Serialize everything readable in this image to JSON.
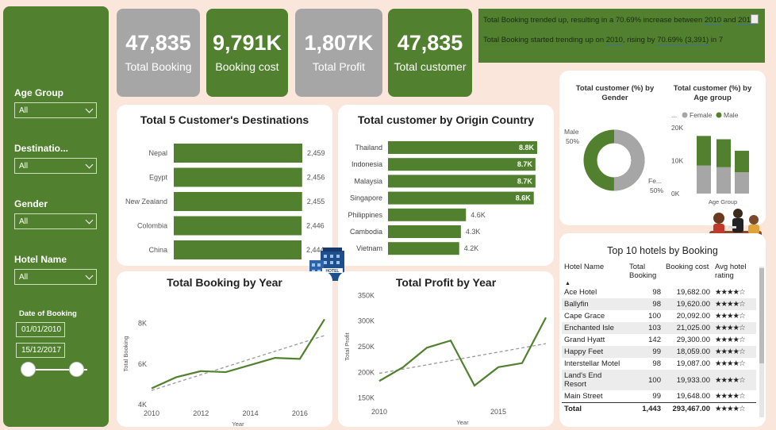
{
  "sidebar": {
    "slicers": [
      {
        "title": "Age Group",
        "value": "All"
      },
      {
        "title": "Destinatio...",
        "value": "All"
      },
      {
        "title": "Gender",
        "value": "All"
      },
      {
        "title": "Hotel Name",
        "value": "All"
      }
    ],
    "date_title": "Date of Booking",
    "date_start": "01/01/2010",
    "date_end": "15/12/2017"
  },
  "kpis": [
    {
      "value": "47,835",
      "label": "Total Booking",
      "style": "gray"
    },
    {
      "value": "9,791K",
      "label": "Booking cost",
      "style": "green"
    },
    {
      "value": "1,807K",
      "label": "Total Profit",
      "style": "gray"
    },
    {
      "value": "47,835",
      "label": "Total customer",
      "style": "green"
    }
  ],
  "narrative": {
    "p1_a": "Total Booking trended up, resulting in a ",
    "p1_b": "70.69%",
    "p1_c": " increase between ",
    "p1_d": "2010",
    "p1_e": " and ",
    "p1_f": "2017",
    "p1_g": ".",
    "p2_a": "Total Booking",
    "p2_b": " started trending up on ",
    "p2_c": "2010",
    "p2_d": ", rising by ",
    "p2_e": "70.69% (3,391)",
    "p2_f": " in 7"
  },
  "colors": {
    "accent": "#51812f",
    "gray": "#a6a6a6",
    "background": "#fbe6dc"
  },
  "chart_data": [
    {
      "type": "bar",
      "title": "Total 5 Customer's Destinations",
      "categories": [
        "Nepal",
        "Egypt",
        "New Zealand",
        "Colombia",
        "China"
      ],
      "values": [
        2459,
        2456,
        2455,
        2446,
        2444
      ],
      "labels": [
        "2,459",
        "2,456",
        "2,455",
        "2,446",
        "2,444"
      ]
    },
    {
      "type": "bar",
      "title": "Total customer by Origin Country",
      "categories": [
        "Thailand",
        "Indonesia",
        "Malaysia",
        "Singapore",
        "Philippines",
        "Cambodia",
        "Vietnam"
      ],
      "values": [
        8800,
        8700,
        8700,
        8600,
        4600,
        4300,
        4200
      ],
      "labels": [
        "8.8K",
        "8.7K",
        "8.7K",
        "8.6K",
        "4.6K",
        "4.3K",
        "4.2K"
      ]
    },
    {
      "type": "pie",
      "title": "Total customer (%) by Gender",
      "categories": [
        "Male",
        "Female"
      ],
      "values": [
        50,
        50
      ],
      "labels": [
        "Male\n50%",
        "Fe...\n50%"
      ]
    },
    {
      "type": "bar",
      "title": "Total customer (%) by Age group",
      "legend": [
        "...",
        "Female",
        "Male"
      ],
      "xlabel": "Age Group",
      "y_ticks": [
        "20K",
        "10K",
        "0K"
      ],
      "ylim": [
        0,
        20000
      ],
      "series": [
        {
          "name": "Female",
          "values": [
            8500,
            8000,
            6500
          ]
        },
        {
          "name": "Male",
          "values": [
            9000,
            8500,
            6500
          ]
        }
      ]
    },
    {
      "type": "line",
      "title": "Total Booking by Year",
      "xlabel": "Year",
      "ylabel": "Total Booking",
      "x": [
        2010,
        2011,
        2012,
        2013,
        2014,
        2015,
        2016,
        2017
      ],
      "y": [
        4800,
        5350,
        5650,
        5600,
        5950,
        6300,
        6250,
        8200
      ],
      "x_ticks": [
        "2010",
        "2012",
        "2014",
        "2016"
      ],
      "y_ticks": [
        "8K",
        "6K",
        "4K"
      ],
      "ylim": [
        4000,
        9000
      ],
      "trend": [
        4700,
        7400
      ]
    },
    {
      "type": "line",
      "title": "Total Profit by Year",
      "xlabel": "Year",
      "ylabel": "Total Profit",
      "x": [
        2010,
        2011,
        2012,
        2013,
        2014,
        2015,
        2016,
        2017
      ],
      "y": [
        183000,
        210000,
        248000,
        262000,
        174000,
        210000,
        218000,
        307000
      ],
      "x_ticks": [
        "2010",
        "2015"
      ],
      "y_ticks": [
        "350K",
        "300K",
        "250K",
        "200K",
        "150K"
      ],
      "ylim": [
        140000,
        360000
      ],
      "trend": [
        198000,
        256000
      ]
    }
  ],
  "hotels": {
    "title": "Top 10 hotels by Booking",
    "headers": [
      "Hotel Name",
      "Total Booking",
      "Booking cost",
      "Avg hotel rating"
    ],
    "rows": [
      {
        "name": "Ace Hotel",
        "booking": "98",
        "cost": "19,682.00",
        "rating": "★★★★☆"
      },
      {
        "name": "Ballyfin",
        "booking": "98",
        "cost": "19,620.00",
        "rating": "★★★★☆"
      },
      {
        "name": "Cape Grace",
        "booking": "100",
        "cost": "20,092.00",
        "rating": "★★★★☆"
      },
      {
        "name": "Enchanted Isle",
        "booking": "103",
        "cost": "21,025.00",
        "rating": "★★★★☆"
      },
      {
        "name": "Grand Hyatt",
        "booking": "142",
        "cost": "29,300.00",
        "rating": "★★★★☆"
      },
      {
        "name": "Happy Feet",
        "booking": "99",
        "cost": "18,059.00",
        "rating": "★★★★☆"
      },
      {
        "name": "Interstellar Motel",
        "booking": "98",
        "cost": "19,087.00",
        "rating": "★★★★☆"
      },
      {
        "name": "Land's End Resort",
        "booking": "100",
        "cost": "19,933.00",
        "rating": "★★★★☆"
      },
      {
        "name": "Main Street",
        "booking": "99",
        "cost": "19,648.00",
        "rating": "★★★★☆"
      }
    ],
    "total": {
      "name": "Total",
      "booking": "1,443",
      "cost": "293,467.00",
      "rating": "★★★★☆"
    }
  }
}
